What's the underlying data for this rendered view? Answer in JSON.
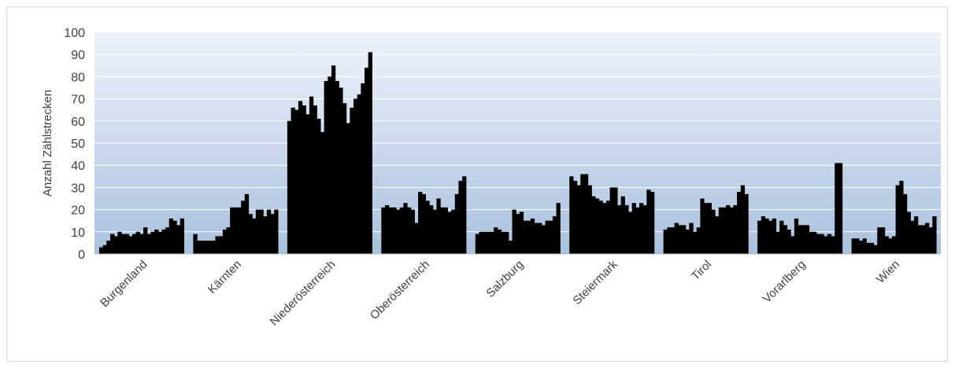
{
  "chart_data": {
    "type": "bar",
    "title": "",
    "xlabel": "",
    "ylabel": "Anzahl Zählstrecken",
    "ylim": [
      0,
      100
    ],
    "yticks": [
      0,
      10,
      20,
      30,
      40,
      50,
      60,
      70,
      80,
      90,
      100
    ],
    "grid": true,
    "legend": "none",
    "colors": {
      "bar": "#000000",
      "plot_top": "#eef3fa",
      "plot_bottom": "#a9c1dd",
      "grid": "#ffffff"
    },
    "groups": [
      {
        "name": "Burgenland",
        "values": [
          3,
          4,
          6,
          9,
          8,
          10,
          9,
          9,
          8,
          9,
          10,
          9,
          12,
          9,
          10,
          11,
          10,
          11,
          12,
          16,
          15,
          13,
          16
        ]
      },
      {
        "name": "Kärnten",
        "values": [
          9,
          6,
          6,
          6,
          6,
          6,
          8,
          8,
          11,
          12,
          21,
          21,
          21,
          24,
          27,
          18,
          16,
          20,
          20,
          17,
          20,
          18,
          20
        ]
      },
      {
        "name": "Niederösterreich",
        "values": [
          60,
          66,
          65,
          69,
          67,
          63,
          71,
          67,
          61,
          55,
          78,
          80,
          85,
          78,
          75,
          68,
          59,
          66,
          70,
          72,
          77,
          84,
          91
        ]
      },
      {
        "name": "Oberösterreich",
        "values": [
          21,
          22,
          21,
          21,
          20,
          21,
          23,
          21,
          20,
          14,
          28,
          27,
          24,
          22,
          20,
          25,
          21,
          21,
          19,
          20,
          27,
          33,
          35
        ]
      },
      {
        "name": "Salzburg",
        "values": [
          9,
          10,
          10,
          10,
          10,
          12,
          11,
          10,
          10,
          6,
          20,
          18,
          19,
          15,
          15,
          16,
          14,
          14,
          13,
          15,
          15,
          17,
          23
        ]
      },
      {
        "name": "Steiermark",
        "values": [
          35,
          33,
          31,
          36,
          36,
          31,
          26,
          25,
          24,
          23,
          24,
          30,
          30,
          22,
          26,
          22,
          19,
          23,
          21,
          23,
          22,
          29,
          28
        ]
      },
      {
        "name": "Tirol",
        "values": [
          11,
          12,
          12,
          14,
          13,
          13,
          11,
          14,
          10,
          12,
          25,
          23,
          23,
          20,
          17,
          21,
          21,
          22,
          21,
          22,
          28,
          31,
          27
        ]
      },
      {
        "name": "Vorarlberg",
        "values": [
          15,
          17,
          16,
          15,
          16,
          10,
          15,
          13,
          11,
          8,
          16,
          13,
          13,
          13,
          10,
          10,
          9,
          9,
          8,
          9,
          8,
          41,
          41
        ]
      },
      {
        "name": "Wien",
        "values": [
          7,
          7,
          6,
          7,
          5,
          5,
          4,
          12,
          12,
          8,
          7,
          8,
          31,
          33,
          27,
          19,
          15,
          17,
          13,
          13,
          14,
          12,
          17
        ]
      }
    ]
  }
}
